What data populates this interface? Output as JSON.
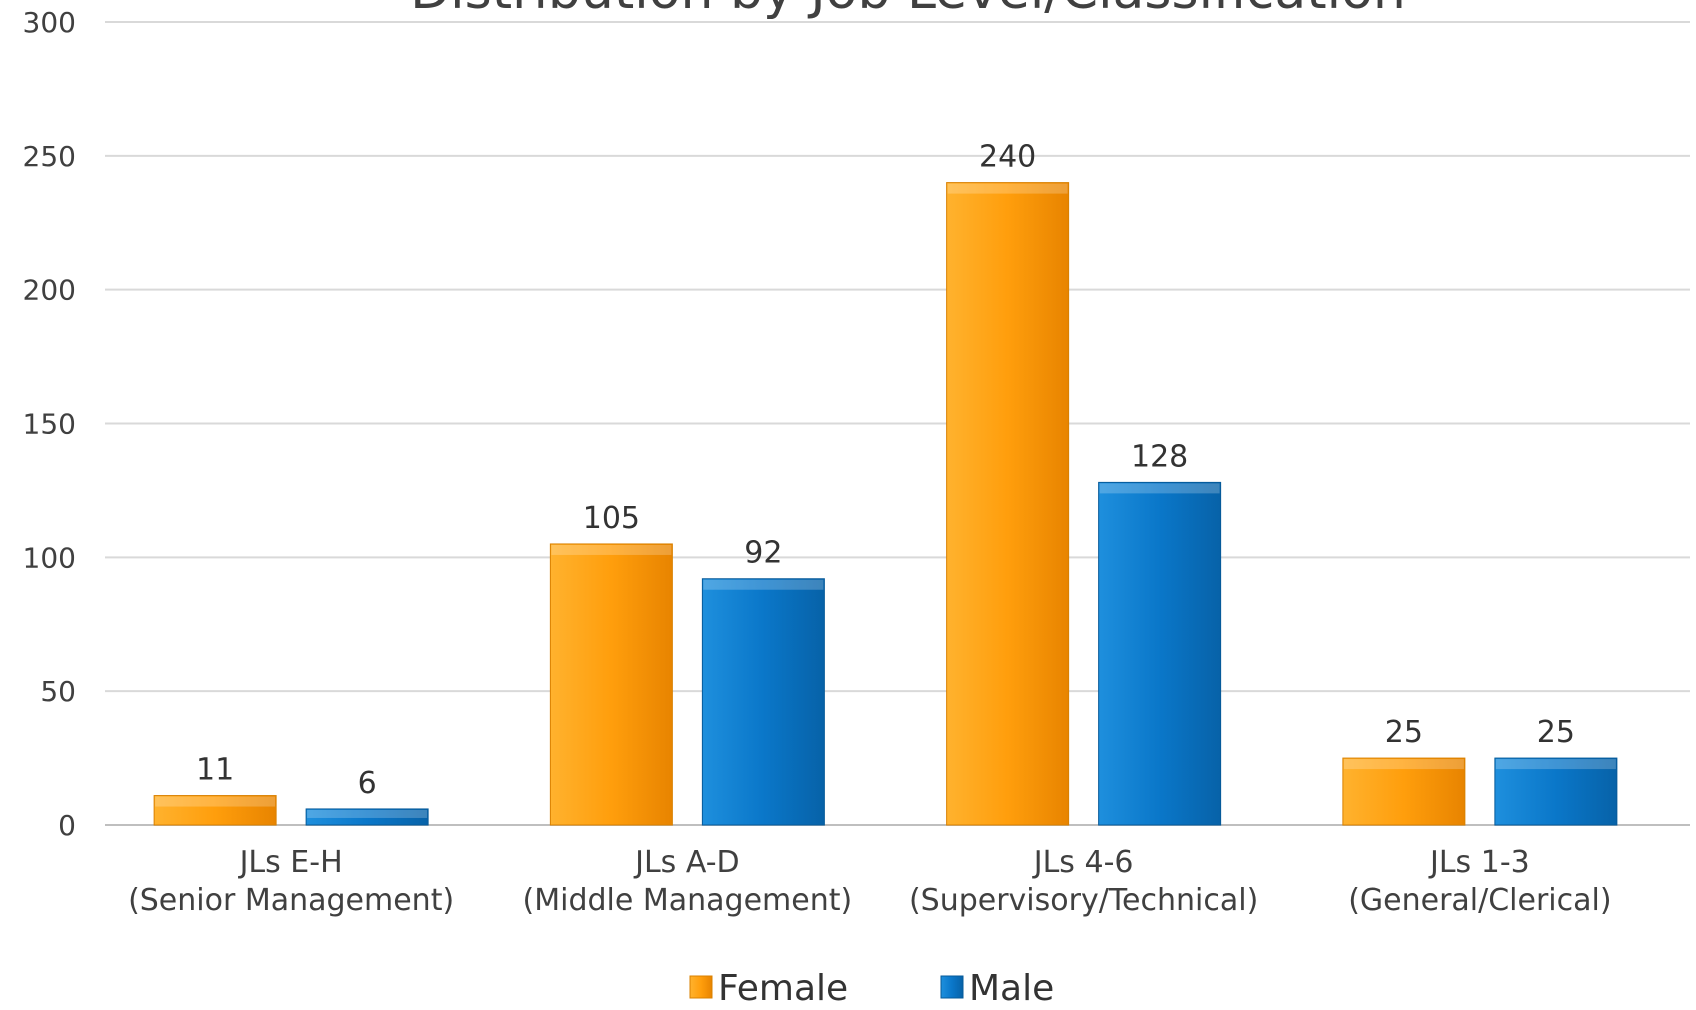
{
  "chart_data": {
    "type": "bar",
    "title": "Distribution by Job Level/Classification",
    "categories": [
      [
        "JLs E-H",
        "(Senior Management)"
      ],
      [
        "JLs A-D",
        "(Middle Management)"
      ],
      [
        "JLs 4-6",
        "(Supervisory/Technical)"
      ],
      [
        "JLs 1-3",
        "(General/Clerical)"
      ]
    ],
    "series": [
      {
        "name": "Female",
        "values": [
          11,
          105,
          240,
          25
        ],
        "color": "#FF9E0C"
      },
      {
        "name": "Male",
        "values": [
          6,
          92,
          128,
          25
        ],
        "color": "#0A77C9"
      }
    ],
    "ylim": [
      0,
      300
    ],
    "yticks": [
      0,
      50,
      100,
      150,
      200,
      250,
      300
    ],
    "grid": true,
    "legend": "bottom-center"
  }
}
